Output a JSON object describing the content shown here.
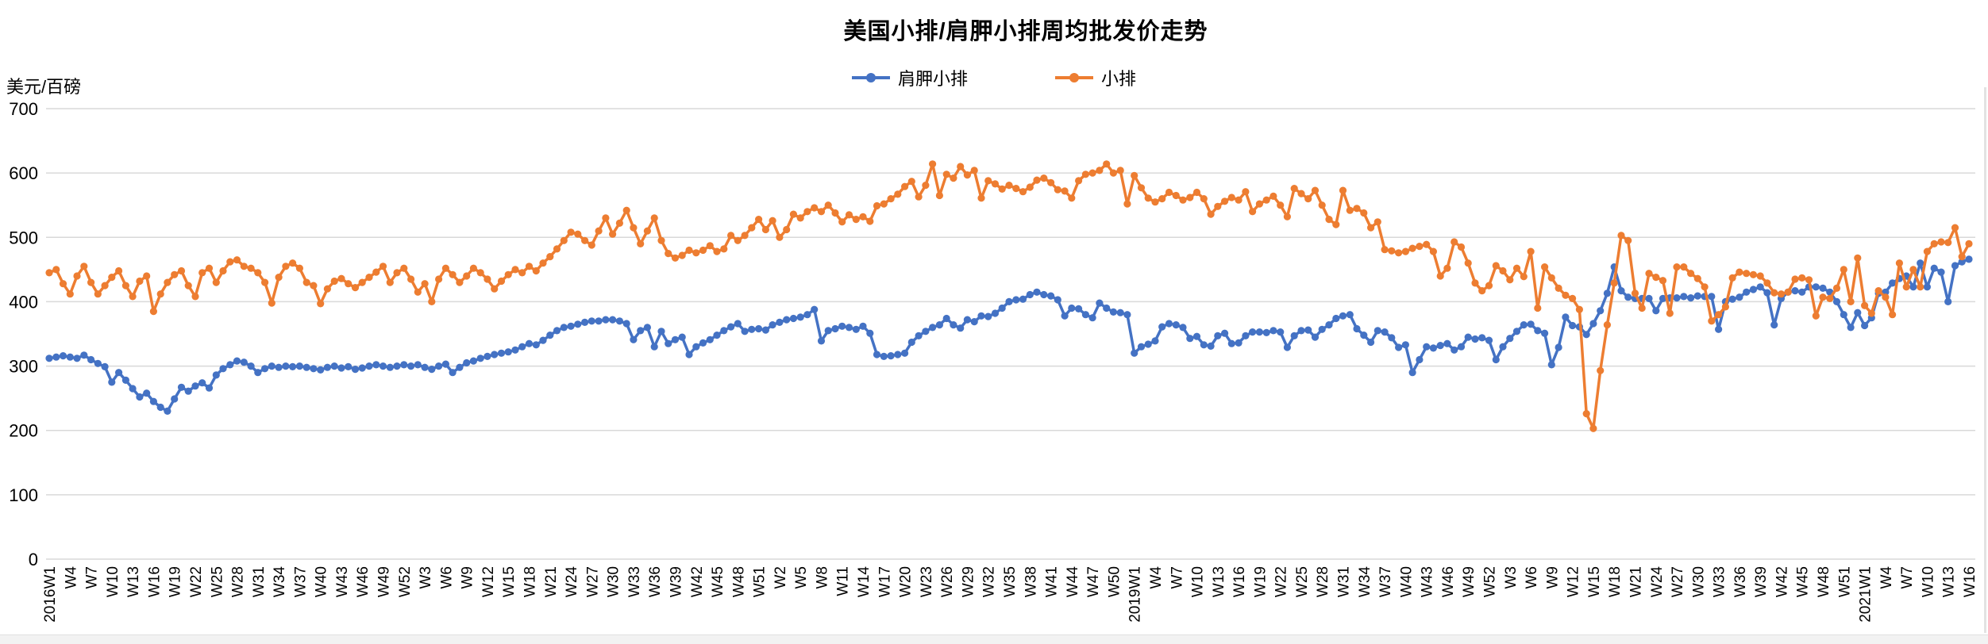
{
  "title": "美国小排/肩胛小排周均批发价走势",
  "y_axis": {
    "unit": "美元/百磅",
    "ticks": [
      0,
      100,
      200,
      300,
      400,
      500,
      600,
      700
    ]
  },
  "legend": {
    "items": [
      {
        "label": "肩胛小排",
        "color": "#4472C4"
      },
      {
        "label": "小排",
        "color": "#ED7D31"
      }
    ]
  },
  "chart_data": {
    "type": "line",
    "title": "美国小排/肩胛小排周均批发价走势",
    "ylabel": "美元/百磅",
    "ylim": [
      0,
      700
    ],
    "y_tick_step": 100,
    "grid": true,
    "legend_position": "top",
    "markers": true,
    "x_label_every": 3,
    "x_tick_labels": [
      "2016W1",
      "W4",
      "W7",
      "W10",
      "W13",
      "W16",
      "W19",
      "W22",
      "W25",
      "W28",
      "W31",
      "W34",
      "W37",
      "W40",
      "W43",
      "W46",
      "W49",
      "W52",
      "W3",
      "W6",
      "W9",
      "W12",
      "W15",
      "W18",
      "W21",
      "W24",
      "W27",
      "W30",
      "W33",
      "W36",
      "W39",
      "W42",
      "W45",
      "W48",
      "W51",
      "W2",
      "W5",
      "W8",
      "W11",
      "W14",
      "W17",
      "W20",
      "W23",
      "W26",
      "W29",
      "W32",
      "W35",
      "W38",
      "W41",
      "W44",
      "W47",
      "W50",
      "2019W1",
      "W4",
      "W7",
      "W10",
      "W13",
      "W16",
      "W19",
      "W22",
      "W25",
      "W28",
      "W31",
      "W34",
      "W37",
      "W40",
      "W43",
      "W46",
      "W49",
      "W52",
      "W3",
      "W6",
      "W9",
      "W12",
      "W15",
      "W18",
      "W21",
      "W24",
      "W27",
      "W30",
      "W33",
      "W36",
      "W39",
      "W42",
      "W45",
      "W48",
      "W51",
      "2021W1",
      "W4",
      "W7",
      "W10",
      "W13",
      "W16"
    ],
    "series": [
      {
        "name": "肩胛小排",
        "color": "#4472C4",
        "values": [
          312,
          314,
          316,
          314,
          312,
          317,
          310,
          304,
          299,
          275,
          290,
          278,
          265,
          252,
          258,
          245,
          236,
          230,
          249,
          267,
          261,
          269,
          274,
          266,
          286,
          296,
          302,
          308,
          306,
          300,
          290,
          296,
          300,
          298,
          300,
          299,
          300,
          298,
          296,
          294,
          298,
          300,
          297,
          299,
          295,
          297,
          300,
          302,
          300,
          298,
          300,
          302,
          300,
          302,
          298,
          295,
          300,
          303,
          290,
          298,
          305,
          308,
          312,
          315,
          318,
          320,
          322,
          325,
          330,
          335,
          333,
          340,
          348,
          355,
          360,
          362,
          365,
          368,
          370,
          370,
          372,
          372,
          370,
          366,
          341,
          355,
          360,
          330,
          354,
          335,
          341,
          345,
          318,
          330,
          336,
          341,
          348,
          355,
          361,
          366,
          354,
          357,
          358,
          356,
          364,
          368,
          372,
          374,
          376,
          380,
          388,
          339,
          355,
          358,
          362,
          360,
          357,
          362,
          351,
          318,
          315,
          316,
          318,
          320,
          337,
          347,
          354,
          360,
          364,
          374,
          364,
          359,
          372,
          369,
          378,
          377,
          382,
          390,
          400,
          403,
          404,
          411,
          415,
          411,
          409,
          403,
          378,
          390,
          389,
          380,
          375,
          398,
          390,
          384,
          383,
          380,
          320,
          330,
          334,
          339,
          361,
          366,
          364,
          360,
          343,
          346,
          333,
          331,
          347,
          351,
          335,
          336,
          347,
          353,
          353,
          352,
          355,
          353,
          329,
          347,
          355,
          356,
          345,
          357,
          364,
          374,
          378,
          380,
          358,
          348,
          337,
          355,
          353,
          344,
          329,
          333,
          290,
          310,
          330,
          328,
          332,
          335,
          325,
          330,
          345,
          342,
          344,
          340,
          310,
          330,
          343,
          354,
          364,
          365,
          355,
          351,
          302,
          329,
          376,
          363,
          361,
          349,
          366,
          386,
          413,
          454,
          417,
          407,
          405,
          405,
          405,
          386,
          405,
          406,
          406,
          408,
          406,
          409,
          408,
          408,
          357,
          400,
          404,
          407,
          415,
          419,
          423,
          414,
          364,
          405,
          415,
          417,
          415,
          423,
          423,
          421,
          415,
          400,
          380,
          360,
          383,
          363,
          375,
          413,
          415,
          429,
          436,
          440,
          423,
          460,
          423,
          452,
          446,
          400,
          456,
          462,
          466
        ]
      },
      {
        "name": "小排",
        "color": "#ED7D31",
        "values": [
          445,
          450,
          428,
          412,
          440,
          455,
          430,
          412,
          425,
          438,
          448,
          425,
          408,
          432,
          440,
          385,
          412,
          430,
          442,
          448,
          425,
          408,
          445,
          452,
          430,
          448,
          462,
          465,
          455,
          452,
          445,
          430,
          398,
          438,
          455,
          460,
          452,
          430,
          425,
          397,
          420,
          432,
          436,
          428,
          422,
          430,
          438,
          446,
          455,
          430,
          445,
          452,
          435,
          415,
          428,
          400,
          435,
          452,
          442,
          430,
          440,
          452,
          445,
          435,
          420,
          432,
          442,
          450,
          445,
          455,
          448,
          460,
          470,
          482,
          495,
          508,
          505,
          495,
          488,
          510,
          530,
          505,
          522,
          542,
          515,
          490,
          510,
          530,
          495,
          475,
          468,
          472,
          480,
          476,
          480,
          487,
          478,
          482,
          503,
          495,
          503,
          515,
          528,
          512,
          526,
          500,
          512,
          536,
          530,
          540,
          546,
          540,
          550,
          538,
          524,
          535,
          528,
          532,
          525,
          549,
          552,
          560,
          567,
          579,
          587,
          563,
          581,
          614,
          565,
          598,
          592,
          610,
          597,
          604,
          561,
          588,
          583,
          575,
          581,
          576,
          571,
          578,
          589,
          592,
          585,
          574,
          572,
          561,
          588,
          598,
          600,
          604,
          614,
          600,
          604,
          552,
          596,
          577,
          561,
          555,
          560,
          570,
          565,
          558,
          562,
          570,
          560,
          536,
          548,
          556,
          562,
          558,
          571,
          540,
          552,
          558,
          564,
          550,
          532,
          576,
          568,
          560,
          573,
          550,
          528,
          520,
          573,
          542,
          545,
          538,
          515,
          524,
          481,
          479,
          476,
          478,
          483,
          486,
          489,
          478,
          440,
          452,
          493,
          485,
          460,
          429,
          417,
          425,
          456,
          448,
          434,
          452,
          439,
          478,
          390,
          454,
          437,
          421,
          410,
          405,
          388,
          226,
          203,
          293,
          364,
          429,
          503,
          495,
          413,
          390,
          444,
          438,
          433,
          382,
          454,
          454,
          444,
          436,
          423,
          370,
          380,
          392,
          437,
          446,
          444,
          442,
          440,
          429,
          414,
          412,
          415,
          435,
          437,
          434,
          378,
          407,
          405,
          421,
          450,
          400,
          468,
          394,
          382,
          417,
          407,
          380,
          460,
          423,
          450,
          423,
          478,
          490,
          493,
          492,
          515,
          470,
          490
        ]
      }
    ]
  }
}
